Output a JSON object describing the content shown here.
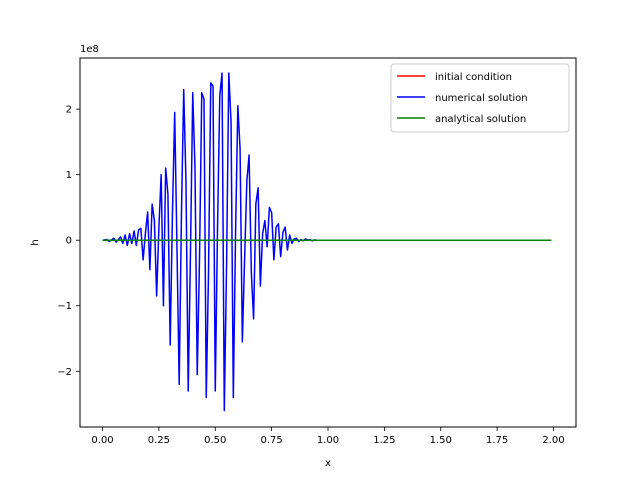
{
  "chart_data": {
    "type": "line",
    "title": "",
    "xlabel": "x",
    "ylabel": "h",
    "y_offset_text": "1e8",
    "xlim": [
      -0.1,
      2.1
    ],
    "ylim": [
      -2.85,
      2.78
    ],
    "y_scale_factor": 100000000,
    "x_ticks": [
      0.0,
      0.25,
      0.5,
      0.75,
      1.0,
      1.25,
      1.5,
      1.75,
      2.0
    ],
    "x_tick_labels": [
      "0.00",
      "0.25",
      "0.50",
      "0.75",
      "1.00",
      "1.25",
      "1.50",
      "1.75",
      "2.00"
    ],
    "y_ticks": [
      -2,
      -1,
      0,
      1,
      2
    ],
    "y_tick_labels": [
      "−2",
      "−1",
      "0",
      "1",
      "2"
    ],
    "grid": false,
    "legend_placement": "top-right",
    "series": [
      {
        "name": "initial condition",
        "color": "#ff0000",
        "x": [
          0.0,
          1.99
        ],
        "y": [
          0.0,
          0.0
        ]
      },
      {
        "name": "numerical solution",
        "color": "#0000ff",
        "x": [
          0.0,
          0.02,
          0.03,
          0.05,
          0.06,
          0.08,
          0.09,
          0.1,
          0.11,
          0.12,
          0.13,
          0.14,
          0.15,
          0.16,
          0.17,
          0.18,
          0.19,
          0.2,
          0.21,
          0.22,
          0.23,
          0.24,
          0.25,
          0.26,
          0.27,
          0.28,
          0.29,
          0.3,
          0.31,
          0.32,
          0.33,
          0.34,
          0.35,
          0.36,
          0.37,
          0.38,
          0.39,
          0.4,
          0.41,
          0.42,
          0.43,
          0.44,
          0.45,
          0.46,
          0.47,
          0.48,
          0.49,
          0.5,
          0.51,
          0.52,
          0.53,
          0.54,
          0.55,
          0.56,
          0.57,
          0.58,
          0.59,
          0.6,
          0.61,
          0.62,
          0.63,
          0.64,
          0.65,
          0.66,
          0.67,
          0.68,
          0.69,
          0.7,
          0.71,
          0.72,
          0.73,
          0.74,
          0.75,
          0.76,
          0.77,
          0.78,
          0.79,
          0.8,
          0.81,
          0.82,
          0.83,
          0.84,
          0.85,
          0.86,
          0.87,
          0.88,
          0.89,
          0.9,
          0.91,
          0.92,
          0.93,
          0.94,
          0.95,
          0.96,
          0.98,
          1.0,
          1.05,
          1.1,
          1.99
        ],
        "y": [
          0.0,
          0.01,
          -0.02,
          0.03,
          -0.03,
          0.05,
          -0.05,
          0.08,
          -0.08,
          0.1,
          -0.05,
          0.14,
          -0.08,
          0.16,
          0.18,
          -0.3,
          0.1,
          0.43,
          -0.45,
          0.55,
          0.3,
          -0.85,
          0.2,
          1.0,
          -1.0,
          1.1,
          0.7,
          -1.6,
          0.4,
          1.95,
          -0.1,
          -2.2,
          0.4,
          2.3,
          0.9,
          -2.3,
          -0.2,
          2.25,
          1.1,
          -2.05,
          -0.3,
          2.25,
          2.15,
          -2.4,
          -0.5,
          2.4,
          2.35,
          -2.3,
          0.2,
          2.2,
          2.55,
          -2.6,
          -0.4,
          2.55,
          1.8,
          -2.4,
          0.1,
          2.05,
          1.4,
          -1.55,
          -0.3,
          0.9,
          1.3,
          -0.5,
          -1.2,
          0.55,
          0.8,
          -0.7,
          0.1,
          0.3,
          -0.1,
          0.5,
          0.42,
          -0.3,
          0.2,
          0.25,
          -0.25,
          0.12,
          0.2,
          -0.15,
          0.08,
          -0.05,
          0.02,
          0.03,
          -0.02,
          0.01,
          -0.01,
          0.02,
          0.0,
          0.01,
          -0.01,
          0.005,
          0.0,
          0.0,
          0.0,
          0.0,
          0.0,
          0.0,
          0.0
        ]
      },
      {
        "name": "analytical solution",
        "color": "#008000",
        "x": [
          0.0,
          1.99
        ],
        "y": [
          0.0,
          0.0
        ]
      }
    ]
  }
}
